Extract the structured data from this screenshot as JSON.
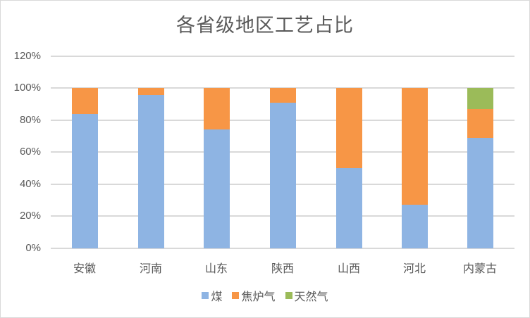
{
  "chart_data": {
    "type": "bar",
    "stacked": true,
    "percent_stacked": true,
    "title": "各省级地区工艺占比",
    "xlabel": "",
    "ylabel": "",
    "ylim": [
      0,
      1.2
    ],
    "yticks": [
      "0%",
      "20%",
      "40%",
      "60%",
      "80%",
      "100%",
      "120%"
    ],
    "grid": true,
    "legend_position": "bottom",
    "categories": [
      "安徽",
      "河南",
      "山东",
      "陕西",
      "山西",
      "河北",
      "内蒙古"
    ],
    "series": [
      {
        "name": "煤",
        "color": "#8eb4e3",
        "values": [
          84,
          96,
          74,
          91,
          50,
          27,
          69
        ]
      },
      {
        "name": "焦炉气",
        "color": "#f79646",
        "values": [
          16,
          4,
          26,
          9,
          50,
          73,
          18
        ]
      },
      {
        "name": "天然气",
        "color": "#9bbb59",
        "values": [
          0,
          0,
          0,
          0,
          0,
          0,
          13
        ]
      }
    ]
  },
  "title": "各省级地区工艺占比",
  "yaxis": {
    "ticks": [
      "0%",
      "20%",
      "40%",
      "60%",
      "80%",
      "100%",
      "120%"
    ]
  },
  "xaxis": {
    "labels": [
      "安徽",
      "河南",
      "山东",
      "陕西",
      "山西",
      "河北",
      "内蒙古"
    ]
  },
  "legend": [
    {
      "label": "煤",
      "color": "#8eb4e3"
    },
    {
      "label": "焦炉气",
      "color": "#f79646"
    },
    {
      "label": "天然气",
      "color": "#9bbb59"
    }
  ]
}
